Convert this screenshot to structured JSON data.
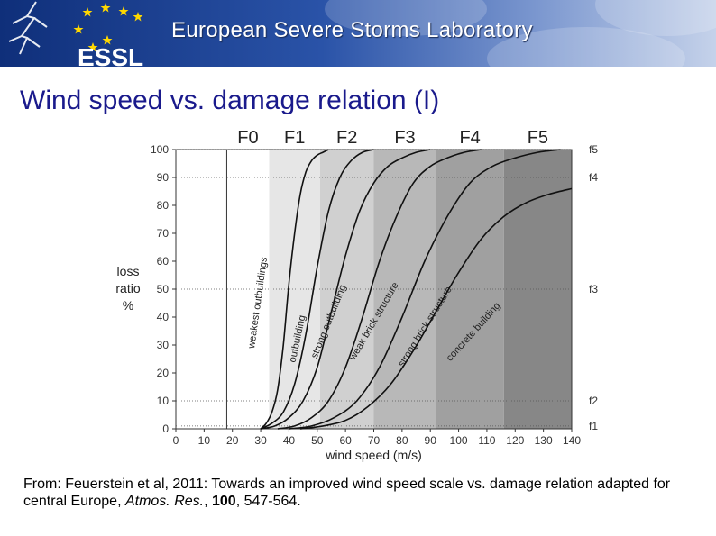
{
  "header": {
    "org_title": "European Severe Storms Laboratory",
    "logo_text": "ESSL"
  },
  "slide": {
    "title": "Wind speed vs. damage relation (I)"
  },
  "caption": {
    "lead": "From: Feuerstein et al, 2011: Towards an improved wind speed scale vs. damage relation adapted for central Europe, ",
    "journal": "Atmos. Res.",
    "sep": ", ",
    "volume": "100",
    "pages": ", 547-564."
  },
  "chart_data": {
    "type": "line",
    "xlabel": "wind speed (m/s)",
    "ylabel_lines": [
      "loss",
      "ratio",
      "%"
    ],
    "xlim": [
      0,
      140
    ],
    "ylim": [
      0,
      100
    ],
    "xticks": [
      0,
      10,
      20,
      30,
      40,
      50,
      60,
      70,
      80,
      90,
      100,
      110,
      120,
      130,
      140
    ],
    "yticks": [
      0,
      10,
      20,
      30,
      40,
      50,
      60,
      70,
      80,
      90,
      100
    ],
    "grid": "dotted horizontal lines at f-levels",
    "vertical_line_x": 18,
    "scale_bands": [
      {
        "label": "F0",
        "from": 18,
        "to": 33,
        "color": "#ffffff"
      },
      {
        "label": "F1",
        "from": 33,
        "to": 51,
        "color": "#e6e6e6"
      },
      {
        "label": "F2",
        "from": 51,
        "to": 70,
        "color": "#d0d0d0"
      },
      {
        "label": "F3",
        "from": 70,
        "to": 92,
        "color": "#b8b8b8"
      },
      {
        "label": "F4",
        "from": 92,
        "to": 116,
        "color": "#a0a0a0"
      },
      {
        "label": "F5",
        "from": 116,
        "to": 142,
        "color": "#878787"
      }
    ],
    "f_levels": [
      {
        "label": "f5",
        "y": 100
      },
      {
        "label": "f4",
        "y": 90
      },
      {
        "label": "f3",
        "y": 50
      },
      {
        "label": "f2",
        "y": 10
      },
      {
        "label": "f1",
        "y": 1
      }
    ],
    "series": [
      {
        "name": "weakest outbuildings",
        "x": [
          30,
          32,
          34,
          36,
          38,
          40,
          42,
          44,
          46,
          48,
          50,
          52,
          54
        ],
        "values": [
          0,
          2,
          6,
          14,
          30,
          52,
          70,
          84,
          92,
          96,
          98,
          99,
          100
        ]
      },
      {
        "name": "outbuilding",
        "x": [
          30,
          34,
          38,
          42,
          46,
          50,
          54,
          58,
          62,
          66,
          70
        ],
        "values": [
          0,
          2,
          6,
          16,
          34,
          58,
          78,
          90,
          96,
          99,
          100
        ]
      },
      {
        "name": "strong outbuilding",
        "x": [
          30,
          35,
          40,
          45,
          50,
          55,
          60,
          65,
          70,
          75,
          80,
          85,
          90
        ],
        "values": [
          0,
          1,
          4,
          10,
          22,
          42,
          62,
          78,
          88,
          94,
          97,
          99,
          100
        ]
      },
      {
        "name": "weak brick structure",
        "x": [
          36,
          42,
          48,
          54,
          60,
          66,
          72,
          78,
          84,
          90,
          96,
          102,
          108
        ],
        "values": [
          0,
          1,
          4,
          10,
          22,
          40,
          60,
          76,
          88,
          94,
          97,
          99,
          100
        ]
      },
      {
        "name": "strong brick structure",
        "x": [
          40,
          48,
          56,
          64,
          72,
          80,
          88,
          96,
          104,
          112,
          120,
          128,
          136
        ],
        "values": [
          0,
          1,
          4,
          10,
          22,
          40,
          60,
          76,
          88,
          94,
          97,
          99,
          100
        ]
      },
      {
        "name": "concrete building",
        "x": [
          44,
          52,
          60,
          68,
          76,
          84,
          92,
          100,
          108,
          116,
          124,
          132,
          140
        ],
        "values": [
          0,
          1,
          3,
          8,
          16,
          28,
          42,
          56,
          68,
          76,
          81,
          84,
          86
        ]
      }
    ]
  }
}
